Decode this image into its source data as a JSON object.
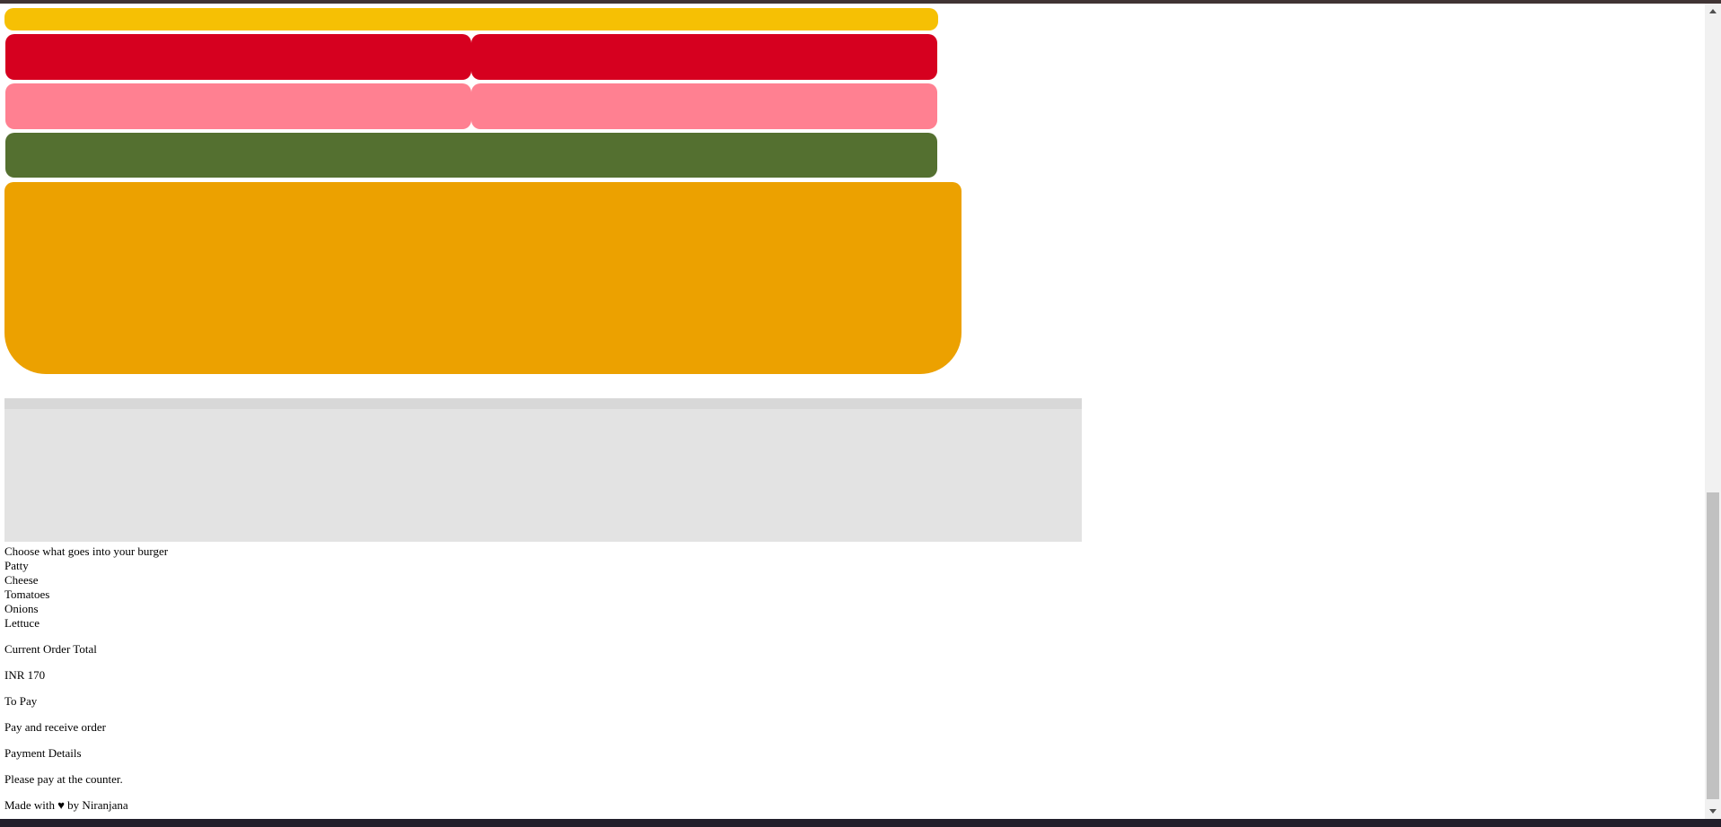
{
  "burger": {
    "layers": [
      "bun-top",
      "meat",
      "cheese",
      "lettuce",
      "bun-bottom"
    ],
    "colors": {
      "bun": "#f6c004",
      "meat": "#d6001f",
      "cheese": "#ff8091",
      "lettuce": "#547030",
      "bun_bottom": "#eca100"
    }
  },
  "controls": {
    "heading": "Choose what goes into your burger",
    "ingredients": [
      "Patty",
      "Cheese",
      "Tomatoes",
      "Onions",
      "Lettuce"
    ]
  },
  "order": {
    "total_label": "Current Order Total",
    "total_value": "INR 170",
    "to_pay": "To Pay",
    "pay_action": "Pay and receive order",
    "payment_details": "Payment Details",
    "payment_instruction": "Please pay at the counter."
  },
  "footer": {
    "text": "Made with ♥ by Niranjana"
  }
}
